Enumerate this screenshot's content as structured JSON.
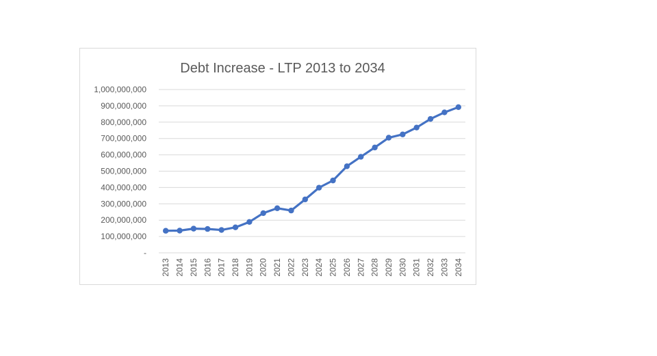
{
  "chart_data": {
    "type": "line",
    "title": "Debt Increase - LTP 2013 to 2034",
    "xlabel": "",
    "ylabel": "",
    "categories": [
      "2013",
      "2014",
      "2015",
      "2016",
      "2017",
      "2018",
      "2019",
      "2020",
      "2021",
      "2022",
      "2023",
      "2024",
      "2025",
      "2026",
      "2027",
      "2028",
      "2029",
      "2030",
      "2031",
      "2032",
      "2033",
      "2034"
    ],
    "series": [
      {
        "values": [
          135000000,
          136000000,
          148000000,
          146000000,
          140000000,
          156000000,
          189000000,
          243000000,
          273000000,
          259000000,
          327000000,
          399000000,
          443000000,
          530000000,
          588000000,
          645000000,
          705000000,
          725000000,
          767000000,
          820000000,
          860000000,
          892000000
        ],
        "color": "#4472c4"
      }
    ],
    "ylim": [
      0,
      1000000000
    ],
    "y_ticks": [
      0,
      100000000,
      200000000,
      300000000,
      400000000,
      500000000,
      600000000,
      700000000,
      800000000,
      900000000,
      1000000000
    ],
    "y_tick_labels": [
      "-",
      "100,000,000",
      "200,000,000",
      "300,000,000",
      "400,000,000",
      "500,000,000",
      "600,000,000",
      "700,000,000",
      "800,000,000",
      "900,000,000",
      "1,000,000,000"
    ],
    "grid": true,
    "legend": "none",
    "colors": {
      "grid": "#d9d9d9",
      "text": "#595959",
      "border": "#d9d9d9"
    }
  }
}
